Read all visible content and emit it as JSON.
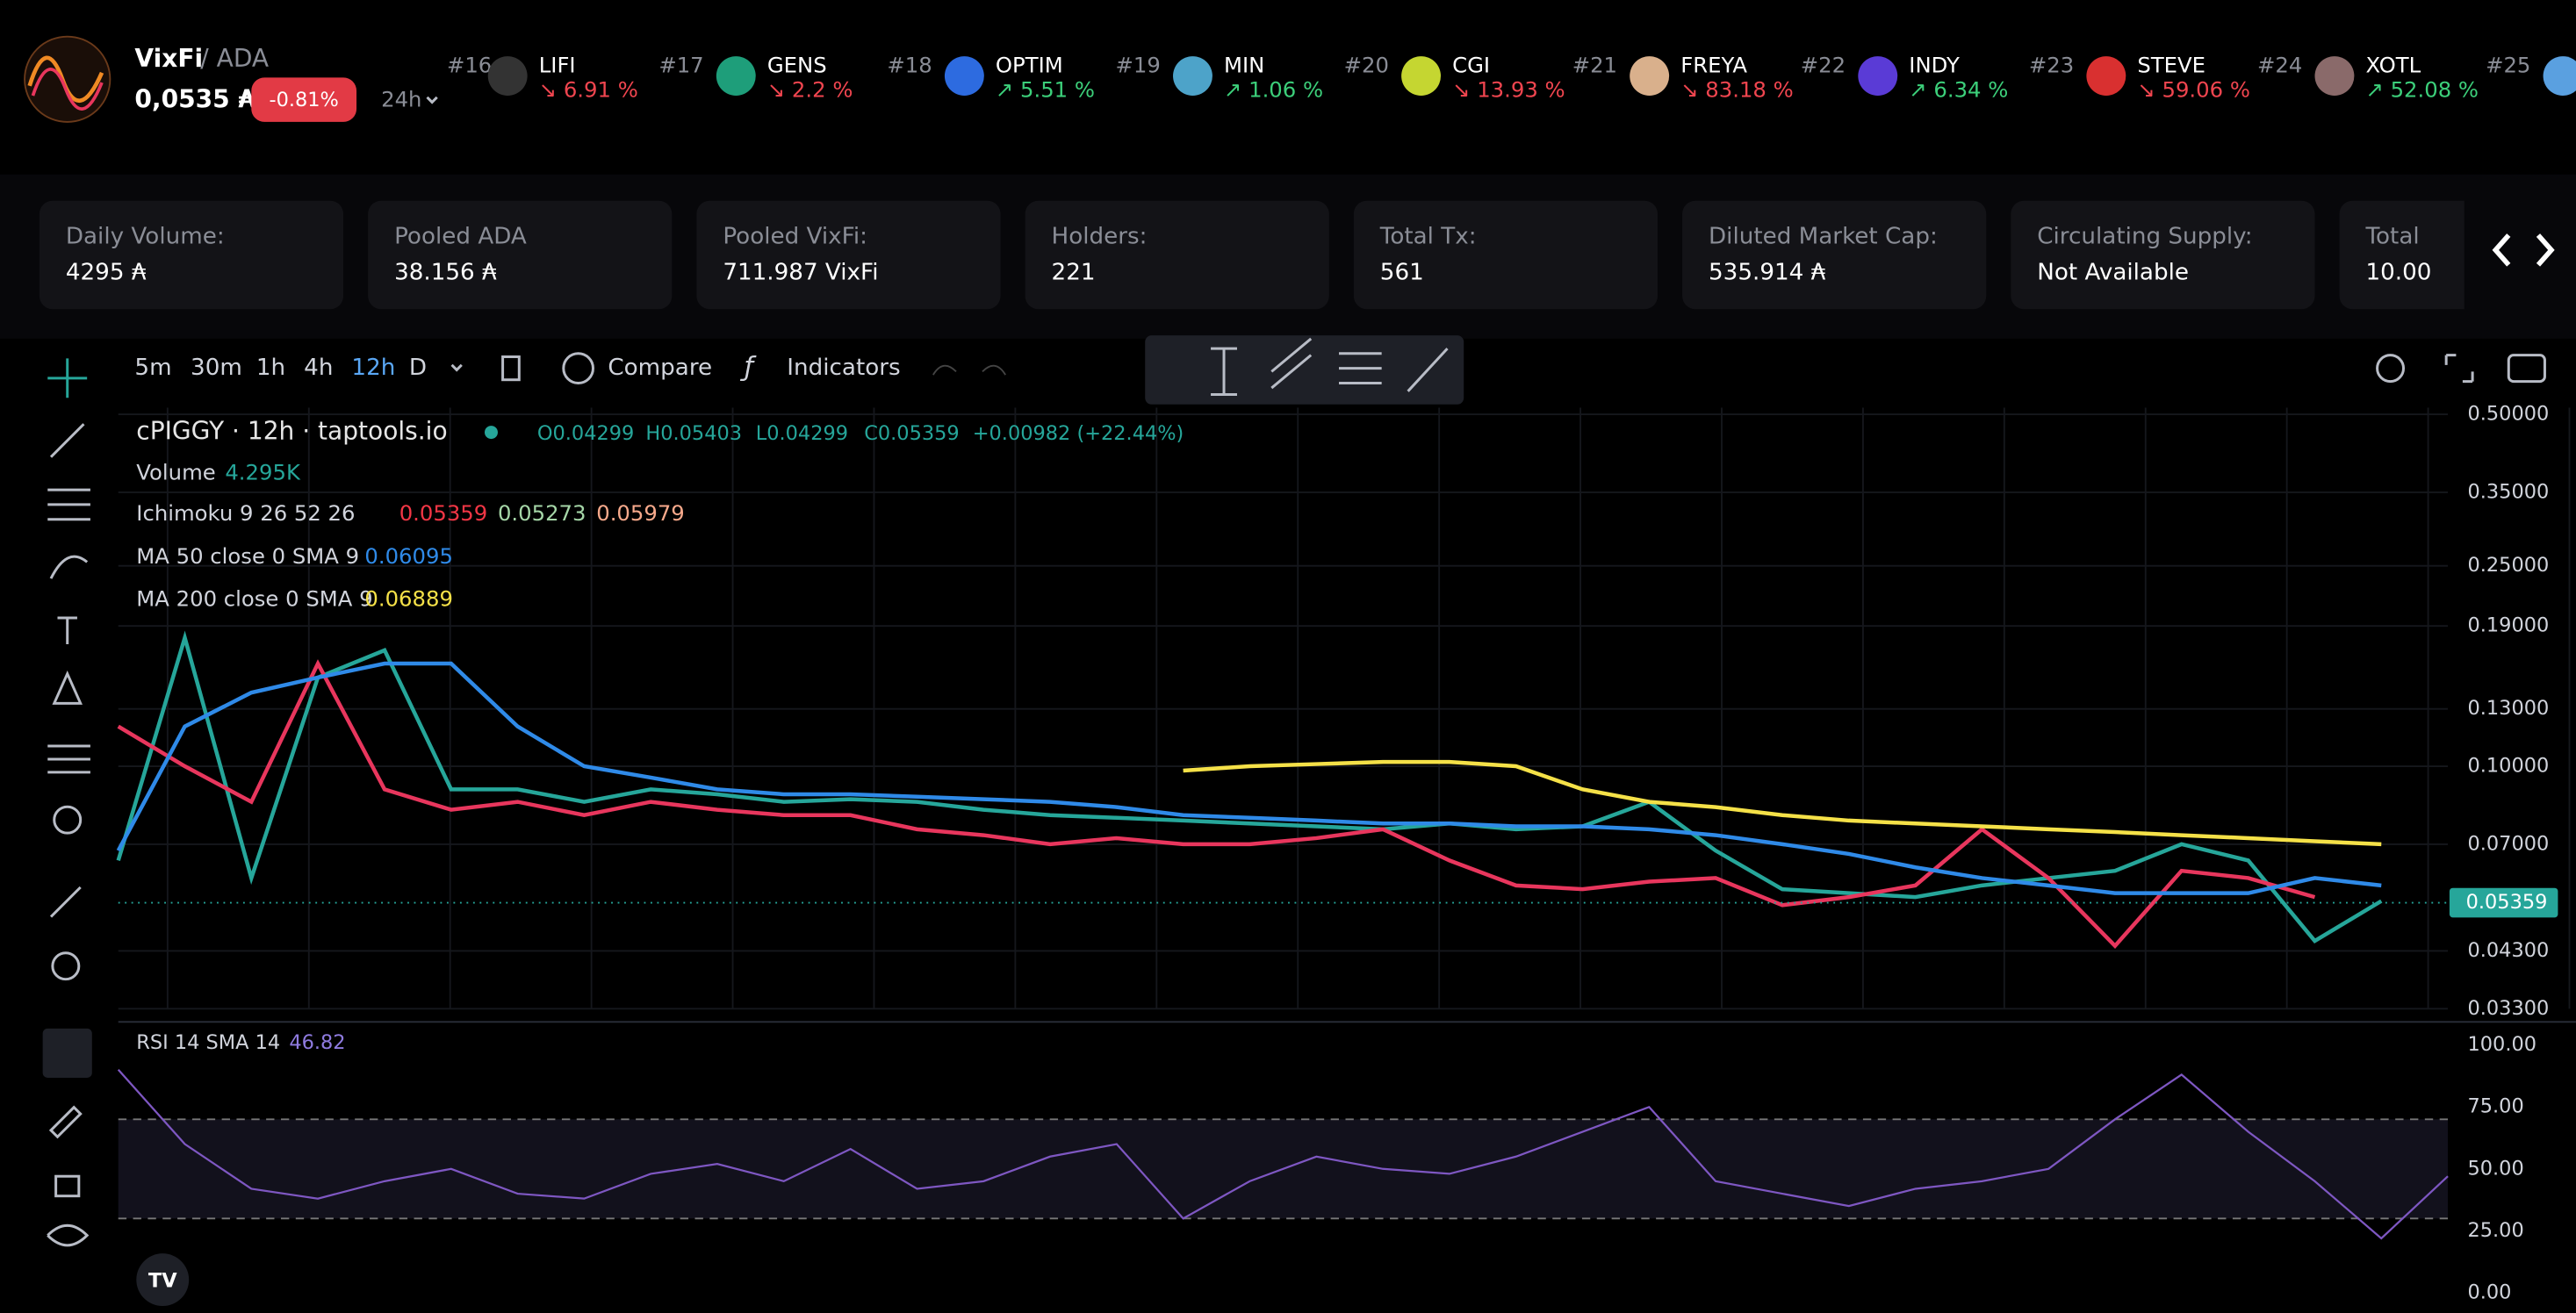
{
  "header": {
    "token": "VixFi",
    "pair": "/ ADA",
    "price": "0,0535 ₳",
    "change": "-0.81%",
    "interval": "24h"
  },
  "ticker": [
    {
      "rank": "#16",
      "name": "LIFI",
      "change": "↘ 6.91 %",
      "trend": "down"
    },
    {
      "rank": "#17",
      "name": "GENS",
      "change": "↘ 2.2 %",
      "trend": "down"
    },
    {
      "rank": "#18",
      "name": "OPTIM",
      "change": "↗ 5.51 %",
      "trend": "up"
    },
    {
      "rank": "#19",
      "name": "MIN",
      "change": "↗ 1.06 %",
      "trend": "up"
    },
    {
      "rank": "#20",
      "name": "CGI",
      "change": "↘ 13.93 %",
      "trend": "down"
    },
    {
      "rank": "#21",
      "name": "FREYA",
      "change": "↘ 83.18 %",
      "trend": "down"
    },
    {
      "rank": "#22",
      "name": "INDY",
      "change": "↗ 6.34 %",
      "trend": "up"
    },
    {
      "rank": "#23",
      "name": "STEVE",
      "change": "↘ 59.06 %",
      "trend": "down"
    },
    {
      "rank": "#24",
      "name": "XOTL",
      "change": "↗ 52.08 %",
      "trend": "up"
    },
    {
      "rank": "#25"
    }
  ],
  "stats": [
    {
      "label": "Daily Volume:",
      "value": "4295 ₳"
    },
    {
      "label": "Pooled ADA",
      "value": "38.156 ₳"
    },
    {
      "label": "Pooled VixFi:",
      "value": "711.987 VixFi"
    },
    {
      "label": "Holders:",
      "value": "221"
    },
    {
      "label": "Total Tx:",
      "value": "561"
    },
    {
      "label": "Diluted Market Cap:",
      "value": "535.914 ₳"
    },
    {
      "label": "Circulating Supply:",
      "value": "Not Available"
    },
    {
      "label": "Total",
      "value": "10.00"
    }
  ],
  "toolbar": {
    "intervals": [
      "5m",
      "30m",
      "1h",
      "4h",
      "12h",
      "D"
    ],
    "active": 4,
    "compare": "Compare",
    "indicators": "Indicators"
  },
  "chart_data": [
    {
      "type": "line",
      "title": "cPIGGY · 12h · taptools.io",
      "ohlc": [
        "O0.04299",
        "H0.05403",
        "L0.04299",
        "C0.05359",
        "+0.00982 (+22.44%)"
      ],
      "legend": [
        {
          "name": "Volume",
          "values": [
            "4.295K"
          ],
          "colors": [
            "#26a69a"
          ]
        },
        {
          "name": "Ichimoku 9 26 52 26",
          "values": [
            "0.05359",
            "0.05273",
            "0.05979"
          ],
          "colors": [
            "#f23645",
            "#a5d6a7",
            "#f7a98b"
          ]
        }
      ],
      "log_scale": true,
      "ylim": [
        0.033,
        0.5
      ],
      "yticks": [
        {
          "value": 0.5,
          "label": "0.50000"
        },
        {
          "value": 0.35,
          "label": "0.35000"
        },
        {
          "value": 0.25,
          "label": "0.25000"
        },
        {
          "value": 0.19,
          "label": "0.19000"
        },
        {
          "value": 0.13,
          "label": "0.13000"
        },
        {
          "value": 0.1,
          "label": "0.10000"
        },
        {
          "value": 0.07,
          "label": "0.07000"
        },
        {
          "value": 0.043,
          "label": "0.04300"
        },
        {
          "value": 0.033,
          "label": "0.03300"
        }
      ],
      "current_price": 0.05359,
      "grid": true,
      "series": [
        {
          "name": "cPIGGY",
          "color": "#26a69a",
          "values": [
            0.065,
            0.18,
            0.06,
            0.15,
            0.17,
            0.09,
            0.09,
            0.085,
            0.09,
            0.088,
            0.085,
            0.086,
            0.085,
            0.082,
            0.08,
            0.079,
            0.078,
            0.077,
            0.076,
            0.075,
            0.077,
            0.075,
            0.076,
            0.085,
            0.068,
            0.057,
            0.056,
            0.055,
            0.058,
            0.06,
            0.062,
            0.07,
            0.065,
            0.045,
            0.054,
            null
          ]
        },
        {
          "name": "Ichimoku 9 26 52 26",
          "color": "#e8365d",
          "values": [
            0.12,
            0.1,
            0.085,
            0.16,
            0.09,
            0.082,
            0.085,
            0.08,
            0.085,
            0.082,
            0.08,
            0.08,
            0.075,
            0.073,
            0.07,
            0.072,
            0.07,
            0.07,
            0.072,
            0.075,
            0.065,
            0.058,
            0.057,
            0.059,
            0.06,
            0.053,
            0.055,
            0.058,
            0.075,
            0.06,
            0.044,
            0.062,
            0.06,
            0.055,
            null,
            null
          ]
        },
        {
          "name": "MA 50 close 0 SMA 9",
          "color": "#2f8ae8",
          "last": "0.06095",
          "values": [
            0.068,
            0.12,
            0.14,
            0.15,
            0.16,
            0.16,
            0.12,
            0.1,
            0.095,
            0.09,
            0.088,
            0.088,
            0.087,
            0.086,
            0.085,
            0.083,
            0.08,
            0.079,
            0.078,
            0.077,
            0.077,
            0.076,
            0.076,
            0.075,
            0.073,
            0.07,
            0.067,
            0.063,
            0.06,
            0.058,
            0.056,
            0.056,
            0.056,
            0.06,
            0.058,
            null
          ]
        },
        {
          "name": "MA 200 close 0 SMA 9",
          "color": "#f5e148",
          "last": "0.06889",
          "values": [
            null,
            null,
            null,
            null,
            null,
            null,
            null,
            null,
            null,
            null,
            null,
            null,
            null,
            null,
            null,
            null,
            0.098,
            0.1,
            0.101,
            0.102,
            0.102,
            0.1,
            0.09,
            0.085,
            0.083,
            0.08,
            0.078,
            0.077,
            0.076,
            0.075,
            0.074,
            0.073,
            0.072,
            0.071,
            0.07,
            null
          ]
        }
      ]
    },
    {
      "type": "line",
      "title": "RSI 14 SMA 14",
      "last": "46.82",
      "ylim": [
        0,
        100
      ],
      "yticks": [
        {
          "value": 100,
          "label": "100.00"
        },
        {
          "value": 75,
          "label": "75.00"
        },
        {
          "value": 50,
          "label": "50.00"
        },
        {
          "value": 25,
          "label": "25.00"
        },
        {
          "value": 0,
          "label": "0.00"
        }
      ],
      "bands": [
        30,
        70
      ],
      "series": [
        {
          "name": "RSI",
          "color": "#7e57c2",
          "values": [
            90,
            60,
            42,
            38,
            45,
            50,
            40,
            38,
            48,
            52,
            45,
            58,
            42,
            45,
            55,
            60,
            30,
            45,
            55,
            50,
            48,
            55,
            65,
            75,
            45,
            40,
            35,
            42,
            45,
            50,
            70,
            88,
            65,
            45,
            22,
            47
          ]
        }
      ]
    }
  ]
}
